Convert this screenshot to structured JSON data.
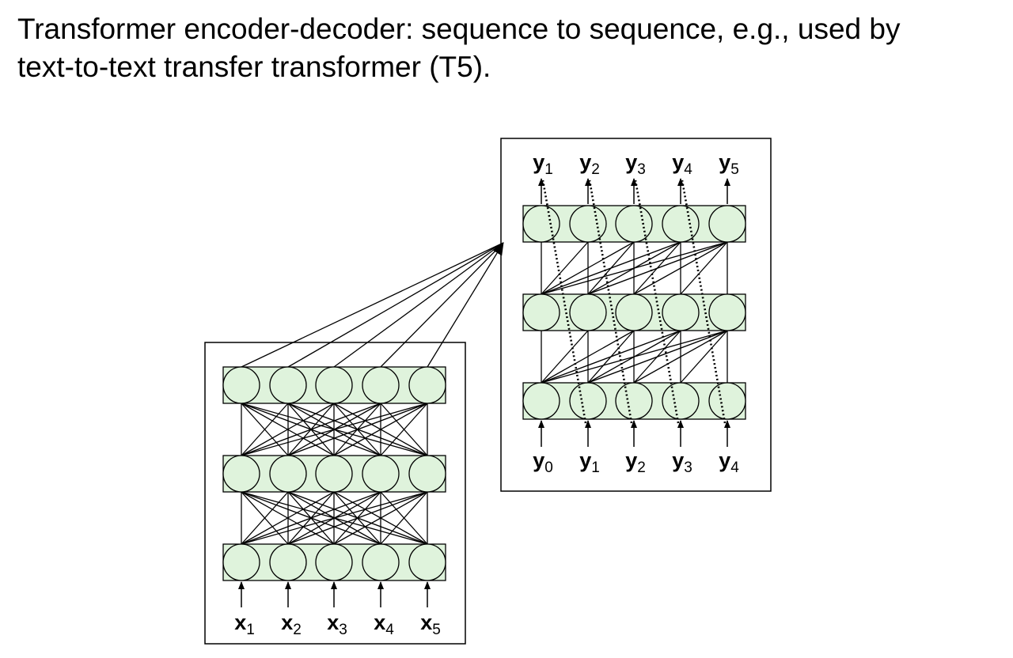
{
  "title": {
    "line1": "Transformer encoder-decoder: sequence to sequence, e.g., used by",
    "line2": "text-to-text transfer transformer (T5)."
  },
  "encoder": {
    "layers": 3,
    "units_per_layer": 5,
    "inputs": [
      {
        "base": "x",
        "sub": "1"
      },
      {
        "base": "x",
        "sub": "2"
      },
      {
        "base": "x",
        "sub": "3"
      },
      {
        "base": "x",
        "sub": "4"
      },
      {
        "base": "x",
        "sub": "5"
      }
    ]
  },
  "decoder": {
    "layers": 3,
    "units_per_layer": 5,
    "inputs": [
      {
        "base": "y",
        "sub": "0"
      },
      {
        "base": "y",
        "sub": "1"
      },
      {
        "base": "y",
        "sub": "2"
      },
      {
        "base": "y",
        "sub": "3"
      },
      {
        "base": "y",
        "sub": "4"
      }
    ],
    "outputs": [
      {
        "base": "y",
        "sub": "1"
      },
      {
        "base": "y",
        "sub": "2"
      },
      {
        "base": "y",
        "sub": "3"
      },
      {
        "base": "y",
        "sub": "4"
      },
      {
        "base": "y",
        "sub": "5"
      }
    ]
  },
  "colors": {
    "unit_fill": "#dff3dc",
    "stroke": "#000000"
  }
}
